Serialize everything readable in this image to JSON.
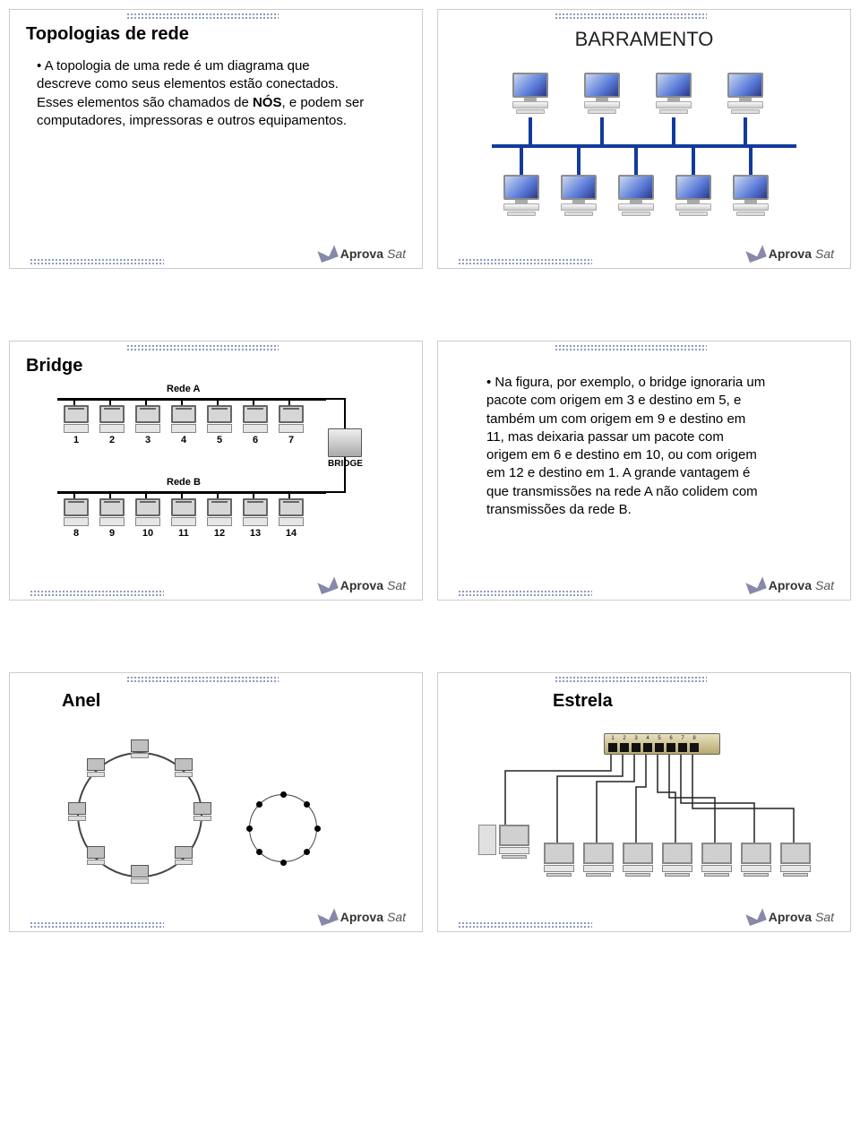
{
  "slide1": {
    "title": "Topologias de rede",
    "body": "A topologia de uma rede é um diagrama que descreve como seus elementos estão conectados. Esses elementos são chamados de ",
    "nos": "NÓS",
    "body2": ", e podem ser computadores, impressoras e outros equipamentos."
  },
  "slide2": {
    "title": "BARRAMENTO",
    "bus_color": "#133b9e",
    "top_count": 4,
    "bottom_count": 5
  },
  "slide3": {
    "title": "Bridge",
    "redeA": "Rede A",
    "redeB": "Rede B",
    "bridge_label": "BRIDGE",
    "top_labels": [
      "1",
      "2",
      "3",
      "4",
      "5",
      "6",
      "7"
    ],
    "bottom_labels": [
      "8",
      "9",
      "10",
      "11",
      "12",
      "13",
      "14"
    ]
  },
  "slide4": {
    "body": "Na figura, por exemplo, o bridge ignoraria um pacote com origem em 3 e destino em 5, e também um com origem em 9 e destino em 11, mas deixaria passar um pacote com origem em 6 e destino em 10, ou com origem em 12 e destino em 1. A grande vantagem é que transmissões na rede A não colidem com transmissões da rede B."
  },
  "slide5": {
    "title": "Anel",
    "ring_nodes": 8,
    "schematic_nodes": 8
  },
  "slide6": {
    "title": "Estrela",
    "ports": [
      "1",
      "2",
      "3",
      "4",
      "5",
      "6",
      "7",
      "8"
    ],
    "stations": 7
  },
  "logo": {
    "bold": "Aprova",
    "italic": "Sat"
  }
}
